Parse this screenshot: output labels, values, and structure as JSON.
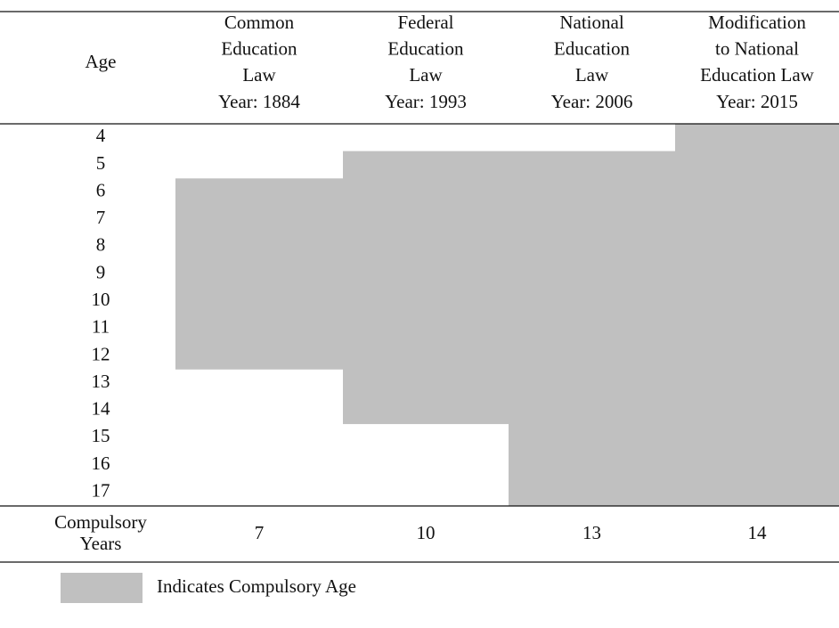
{
  "table": {
    "age_header": "Age",
    "laws": [
      {
        "lines": [
          "Common",
          "Education",
          "Law",
          "Year: 1884"
        ],
        "compulsory_from": 6,
        "compulsory_to": 12,
        "years": 7
      },
      {
        "lines": [
          "Federal",
          "Education",
          "Law",
          "Year: 1993"
        ],
        "compulsory_from": 5,
        "compulsory_to": 14,
        "years": 10
      },
      {
        "lines": [
          "National",
          "Education",
          "Law",
          "Year: 2006"
        ],
        "compulsory_from": 5,
        "compulsory_to": 17,
        "years": 13
      },
      {
        "lines": [
          "Modification",
          "to National",
          "Education Law",
          "Year: 2015"
        ],
        "compulsory_from": 4,
        "compulsory_to": 17,
        "years": 14
      }
    ],
    "ages": [
      4,
      5,
      6,
      7,
      8,
      9,
      10,
      11,
      12,
      13,
      14,
      15,
      16,
      17
    ],
    "footer_label": [
      "Compulsory",
      "Years"
    ],
    "shade_color": "#c0c0c0"
  },
  "legend": {
    "label": "Indicates Compulsory Age"
  }
}
